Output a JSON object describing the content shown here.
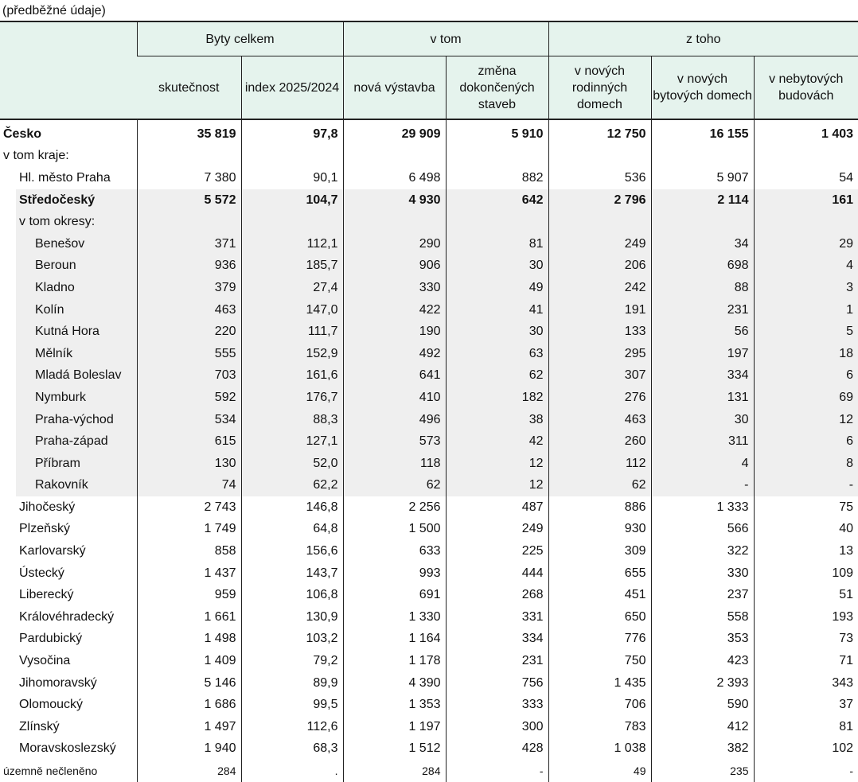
{
  "note": "(předběžné údaje)",
  "header": {
    "group1": "Byty celkem",
    "group2": "v tom",
    "group3": "z toho",
    "cols": [
      "skutečnost",
      "index 2025/2024",
      "nová výstavba",
      "změna dokončených staveb",
      "v nových rodinných domech",
      "v nových bytových domech",
      "v nebytových budovách"
    ]
  },
  "rows": [
    {
      "label": "Česko",
      "values": [
        "35 819",
        "97,8",
        "29 909",
        "5 910",
        "12 750",
        "16 155",
        "1 403"
      ],
      "style": "bold",
      "indent": 0
    },
    {
      "label": "v tom kraje:",
      "values": [],
      "indent": 0
    },
    {
      "label": "Hl. město Praha",
      "values": [
        "7 380",
        "90,1",
        "6 498",
        "882",
        "536",
        "5 907",
        "54"
      ],
      "indent": 1
    },
    {
      "label": "Středočeský",
      "values": [
        "5 572",
        "104,7",
        "4 930",
        "642",
        "2 796",
        "2 114",
        "161"
      ],
      "style": "bold",
      "shade": true,
      "indent": 1
    },
    {
      "label": "v tom okresy:",
      "values": [],
      "shade": true,
      "indent": 1
    },
    {
      "label": "Benešov",
      "values": [
        "371",
        "112,1",
        "290",
        "81",
        "249",
        "34",
        "29"
      ],
      "shade": true,
      "indent": 2
    },
    {
      "label": "Beroun",
      "values": [
        "936",
        "185,7",
        "906",
        "30",
        "206",
        "698",
        "4"
      ],
      "shade": true,
      "indent": 2
    },
    {
      "label": "Kladno",
      "values": [
        "379",
        "27,4",
        "330",
        "49",
        "242",
        "88",
        "3"
      ],
      "shade": true,
      "indent": 2
    },
    {
      "label": "Kolín",
      "values": [
        "463",
        "147,0",
        "422",
        "41",
        "191",
        "231",
        "1"
      ],
      "shade": true,
      "indent": 2
    },
    {
      "label": "Kutná Hora",
      "values": [
        "220",
        "111,7",
        "190",
        "30",
        "133",
        "56",
        "5"
      ],
      "shade": true,
      "indent": 2
    },
    {
      "label": "Mělník",
      "values": [
        "555",
        "152,9",
        "492",
        "63",
        "295",
        "197",
        "18"
      ],
      "shade": true,
      "indent": 2
    },
    {
      "label": "Mladá Boleslav",
      "values": [
        "703",
        "161,6",
        "641",
        "62",
        "307",
        "334",
        "6"
      ],
      "shade": true,
      "indent": 2
    },
    {
      "label": "Nymburk",
      "values": [
        "592",
        "176,7",
        "410",
        "182",
        "276",
        "131",
        "69"
      ],
      "shade": true,
      "indent": 2
    },
    {
      "label": "Praha-východ",
      "values": [
        "534",
        "88,3",
        "496",
        "38",
        "463",
        "30",
        "12"
      ],
      "shade": true,
      "indent": 2
    },
    {
      "label": "Praha-západ",
      "values": [
        "615",
        "127,1",
        "573",
        "42",
        "260",
        "311",
        "6"
      ],
      "shade": true,
      "indent": 2
    },
    {
      "label": "Příbram",
      "values": [
        "130",
        "52,0",
        "118",
        "12",
        "112",
        "4",
        "8"
      ],
      "shade": true,
      "indent": 2
    },
    {
      "label": "Rakovník",
      "values": [
        "74",
        "62,2",
        "62",
        "12",
        "62",
        "-",
        "-"
      ],
      "shade": true,
      "indent": 2
    },
    {
      "label": "Jihočeský",
      "values": [
        "2 743",
        "146,8",
        "2 256",
        "487",
        "886",
        "1 333",
        "75"
      ],
      "indent": 1
    },
    {
      "label": "Plzeňský",
      "values": [
        "1 749",
        "64,8",
        "1 500",
        "249",
        "930",
        "566",
        "40"
      ],
      "indent": 1
    },
    {
      "label": "Karlovarský",
      "values": [
        "858",
        "156,6",
        "633",
        "225",
        "309",
        "322",
        "13"
      ],
      "indent": 1
    },
    {
      "label": "Ústecký",
      "values": [
        "1 437",
        "143,7",
        "993",
        "444",
        "655",
        "330",
        "109"
      ],
      "indent": 1
    },
    {
      "label": "Liberecký",
      "values": [
        "959",
        "106,8",
        "691",
        "268",
        "451",
        "237",
        "51"
      ],
      "indent": 1
    },
    {
      "label": "Královéhradecký",
      "values": [
        "1 661",
        "130,9",
        "1 330",
        "331",
        "650",
        "558",
        "193"
      ],
      "indent": 1
    },
    {
      "label": "Pardubický",
      "values": [
        "1 498",
        "103,2",
        "1 164",
        "334",
        "776",
        "353",
        "73"
      ],
      "indent": 1
    },
    {
      "label": "Vysočina",
      "values": [
        "1 409",
        "79,2",
        "1 178",
        "231",
        "750",
        "423",
        "71"
      ],
      "indent": 1
    },
    {
      "label": "Jihomoravský",
      "values": [
        "5 146",
        "89,9",
        "4 390",
        "756",
        "1 435",
        "2 393",
        "343"
      ],
      "indent": 1
    },
    {
      "label": "Olomoucký",
      "values": [
        "1 686",
        "99,5",
        "1 353",
        "333",
        "706",
        "590",
        "37"
      ],
      "indent": 1
    },
    {
      "label": "Zlínský",
      "values": [
        "1 497",
        "112,6",
        "1 197",
        "300",
        "783",
        "412",
        "81"
      ],
      "indent": 1
    },
    {
      "label": "Moravskoslezský",
      "values": [
        "1 940",
        "68,3",
        "1 512",
        "428",
        "1 038",
        "382",
        "102"
      ],
      "indent": 1
    },
    {
      "label": "územně nečleněno",
      "values": [
        "284",
        ".",
        "284",
        "-",
        "49",
        "235",
        "-"
      ],
      "style": "small",
      "indent": 0
    }
  ]
}
